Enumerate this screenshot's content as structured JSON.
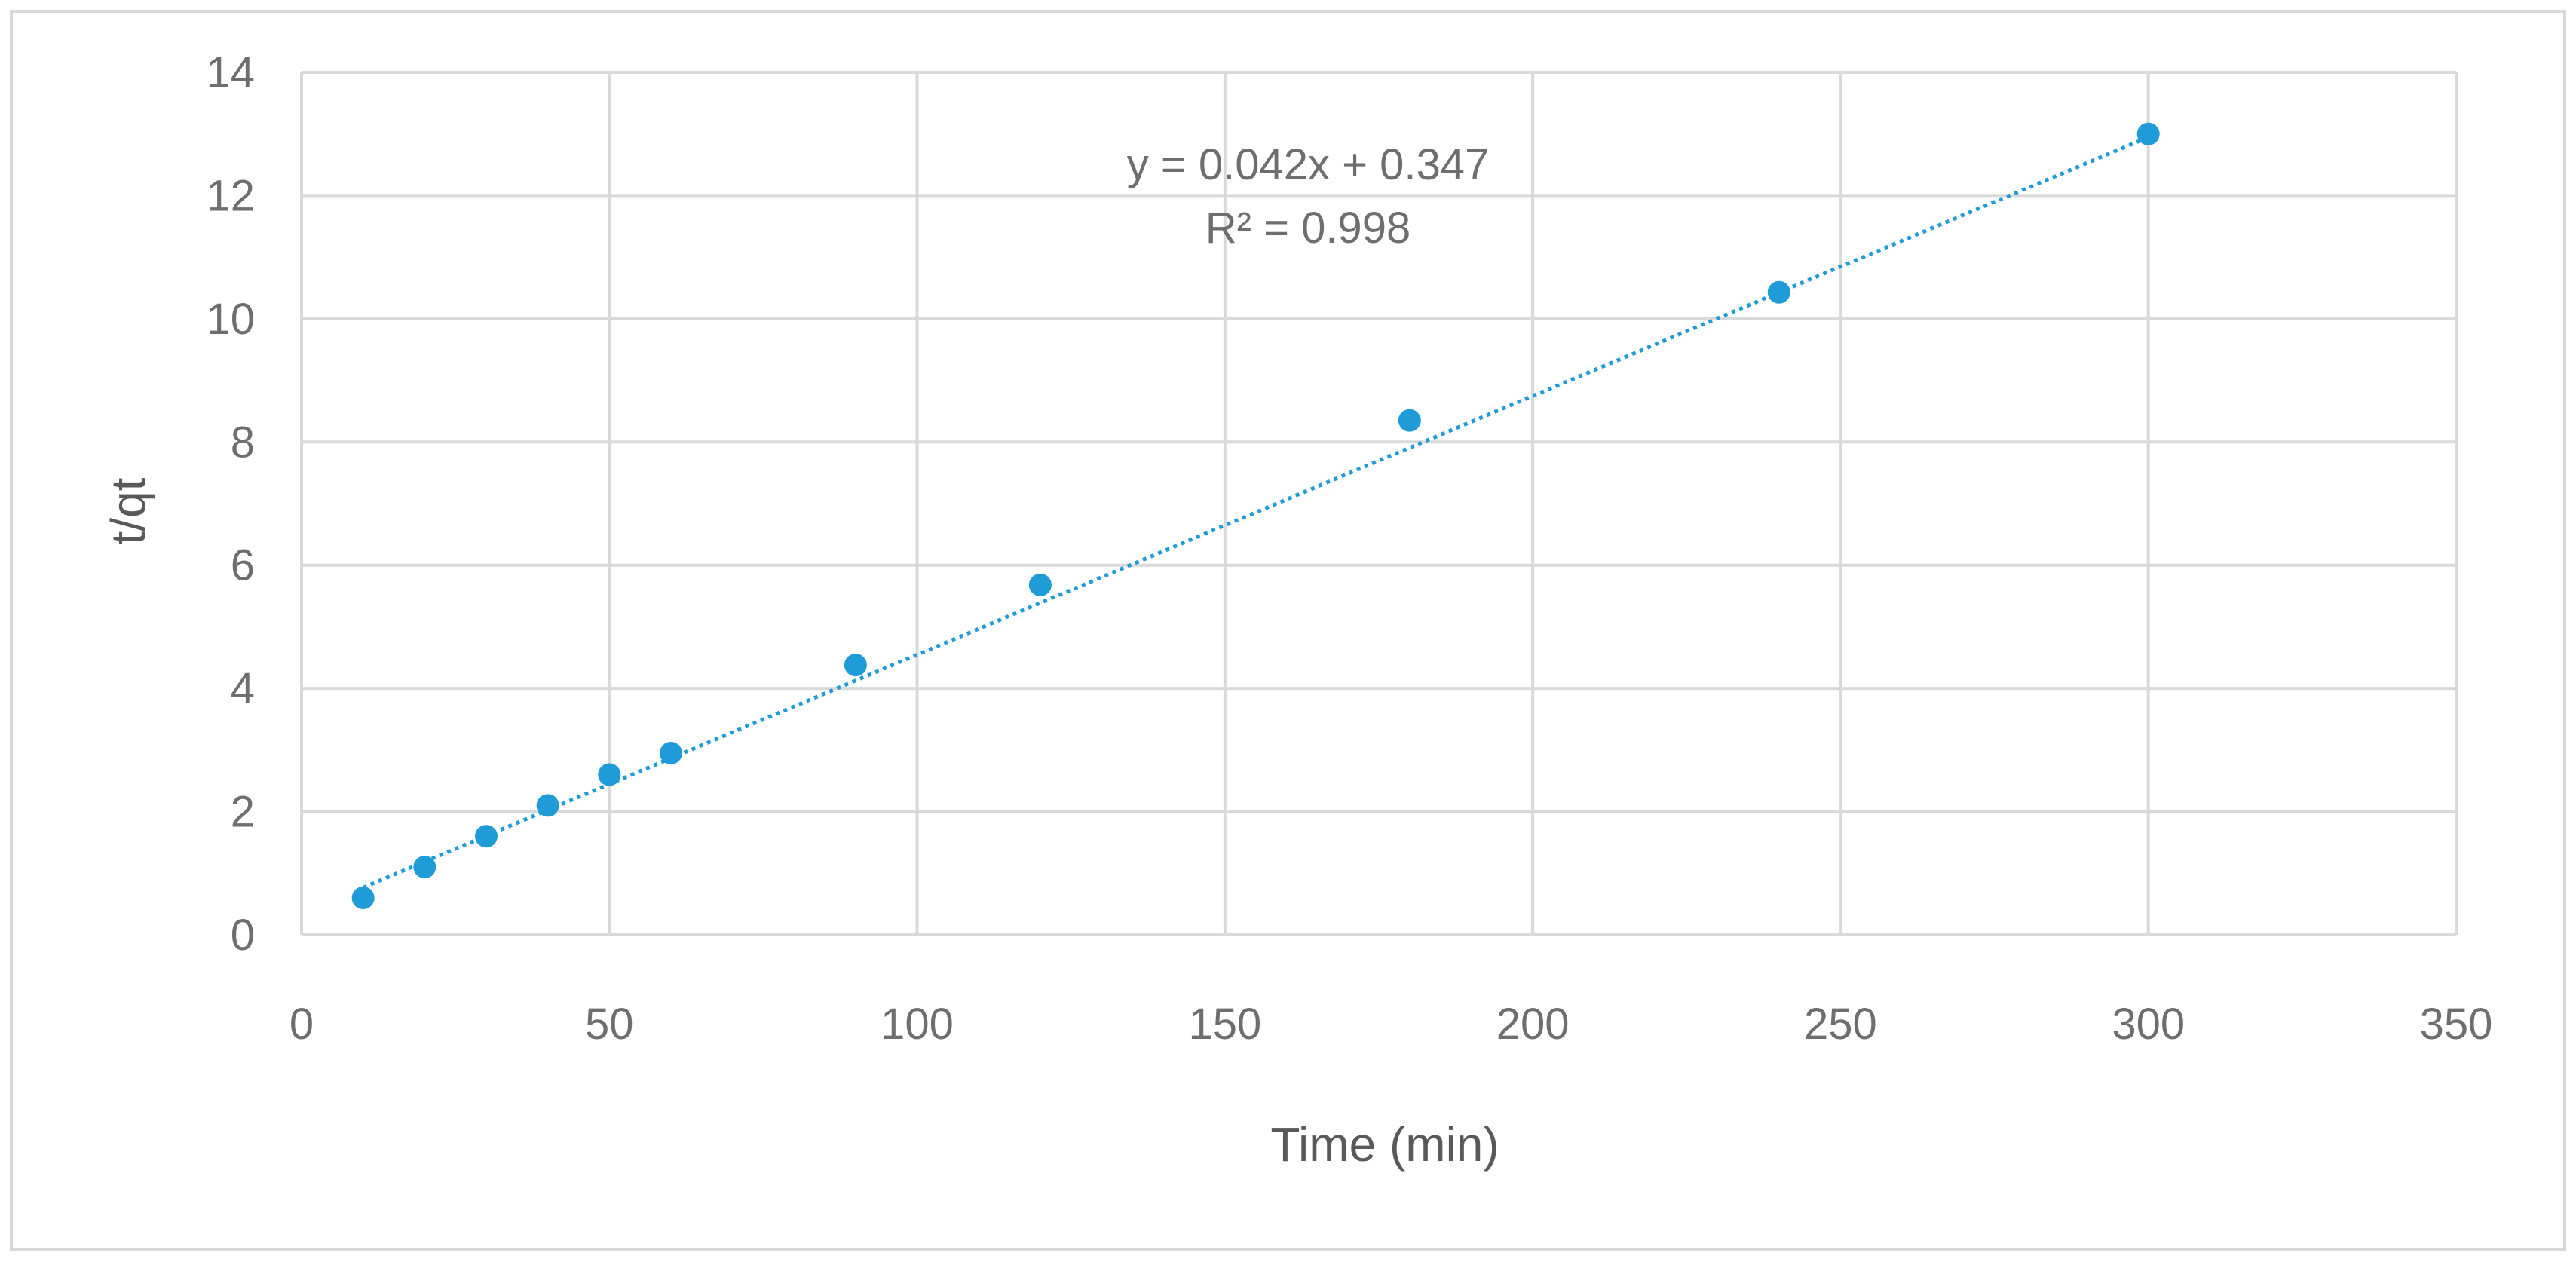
{
  "chart_data": {
    "type": "scatter",
    "title": "",
    "xlabel": "Time (min)",
    "ylabel": "t/qt",
    "xlim": [
      0,
      350
    ],
    "ylim": [
      0,
      14
    ],
    "xticks": [
      0,
      50,
      100,
      150,
      200,
      250,
      300,
      350
    ],
    "yticks": [
      0,
      2,
      4,
      6,
      8,
      10,
      12,
      14
    ],
    "grid": true,
    "legend": "none",
    "marker_color": "#1f9bd7",
    "trendline_color": "#1f9bd7",
    "gridline_color": "#d9d9d9",
    "series": [
      {
        "x": [
          10,
          20,
          30,
          40,
          50,
          60,
          90,
          120,
          180,
          240,
          300
        ],
        "y": [
          0.6,
          1.1,
          1.6,
          2.1,
          2.6,
          2.95,
          4.38,
          5.68,
          8.35,
          10.43,
          13.0
        ]
      }
    ],
    "trendline": {
      "type": "linear",
      "slope": 0.042,
      "intercept": 0.347,
      "x_range": [
        10,
        300
      ],
      "style": "dotted",
      "equation": "y = 0.042x + 0.347",
      "r_squared": "R² = 0.998"
    }
  }
}
